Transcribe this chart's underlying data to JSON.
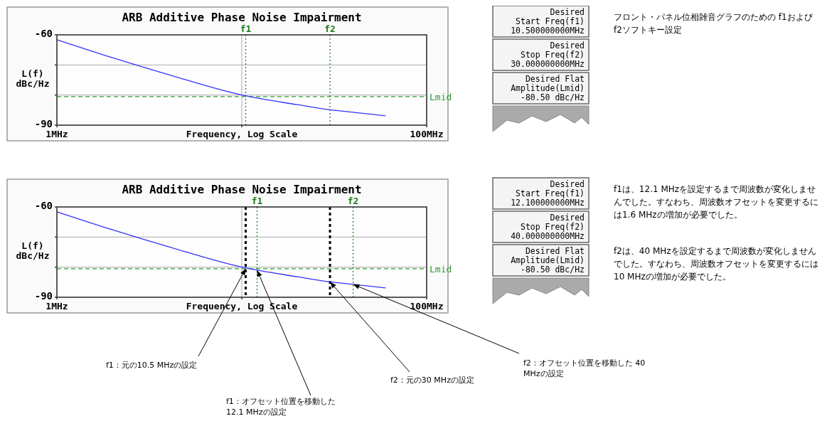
{
  "chart_data": [
    {
      "type": "line",
      "title": "ARB Additive Phase Noise Impairment",
      "xlabel": "Frequency, Log Scale",
      "ylabel": "L(f) dBc/Hz",
      "log": "x",
      "grid": true,
      "x": [
        1,
        2,
        4,
        10,
        20,
        30,
        40,
        60
      ],
      "series": [
        {
          "color": "#3333ff",
          "values": [
            -61.6,
            -67.6,
            -73.2,
            -80.0,
            -83.2,
            -84.9,
            -85.7,
            -86.9
          ]
        }
      ],
      "xlim": [
        1,
        100
      ],
      "xticks": [
        {
          "value": 1,
          "label": "1MHz"
        },
        {
          "value": 10,
          "label": null
        },
        {
          "value": 100,
          "label": "100MHz"
        }
      ],
      "ylim": [
        -90,
        -60
      ],
      "yticks": [
        {
          "value": -90,
          "label": "-90"
        },
        {
          "value": -80,
          "label": null
        },
        {
          "value": -70,
          "label": null
        },
        {
          "value": -60,
          "label": "-60"
        }
      ],
      "ref_lines": [
        {
          "axis": "x",
          "value": 10.5,
          "label": "f1",
          "color": "#1a7a1a",
          "line_style": "dotted"
        },
        {
          "axis": "x",
          "value": 30,
          "label": "f2",
          "color": "#1a7a1a",
          "line_style": "dotted"
        },
        {
          "axis": "y",
          "value": -80.5,
          "label": "Lmid",
          "color": "#2e9a2e",
          "line_style": "dashed"
        }
      ],
      "annotations": [
        "Desired\nStart Freq(f1)\n10.500000000MHz",
        "Desired\nStop Freq(f2)\n30.000000000MHz",
        "Desired Flat\nAmplitude(Lmid)\n-80.50 dBc/Hz",
        "フロント・パネル位相雑音グラフのための f1およびf2ソフトキー設定"
      ]
    },
    {
      "type": "line",
      "title": "ARB Additive Phase Noise Impairment",
      "xlabel": "Frequency, Log Scale",
      "ylabel": "L(f) dBc/Hz",
      "log": "x",
      "grid": true,
      "x": [
        1,
        2,
        4,
        10,
        20,
        30,
        40,
        60
      ],
      "series": [
        {
          "color": "#3333ff",
          "values": [
            -61.6,
            -67.6,
            -73.2,
            -80.0,
            -83.2,
            -84.9,
            -85.7,
            -86.9
          ]
        }
      ],
      "xlim": [
        1,
        100
      ],
      "xticks": [
        {
          "value": 1,
          "label": "1MHz"
        },
        {
          "value": 10,
          "label": null
        },
        {
          "value": 100,
          "label": "100MHz"
        }
      ],
      "ylim": [
        -90,
        -60
      ],
      "yticks": [
        {
          "value": -90,
          "label": "-90"
        },
        {
          "value": -80,
          "label": null
        },
        {
          "value": -70,
          "label": null
        },
        {
          "value": -60,
          "label": "-60"
        }
      ],
      "ref_lines": [
        {
          "axis": "x",
          "value": 12.1,
          "label": "f1",
          "color": "#1a7a1a",
          "line_style": "dotted"
        },
        {
          "axis": "x",
          "value": 40,
          "label": "f2",
          "color": "#1a7a1a",
          "line_style": "dotted"
        },
        {
          "axis": "y",
          "value": -80.5,
          "label": "Lmid",
          "color": "#2e9a2e",
          "line_style": "dashed"
        },
        {
          "axis": "x",
          "value": 10.5,
          "color": "#000000",
          "line_style": "dashed"
        },
        {
          "axis": "x",
          "value": 30,
          "color": "#000000",
          "line_style": "dashed"
        }
      ],
      "annotations": [
        "Desired\nStart Freq(f1)\n12.100000000MHz",
        "Desired\nStop Freq(f2)\n40.000000000MHz",
        "Desired Flat\nAmplitude(Lmid)\n-80.50 dBc/Hz",
        "f1は、12.1 MHzを設定するまで周波数が変化しませんでした。すなわち、周波数オフセットを変更するには1.6 MHzの増加が必要でした。",
        "f2は、40 MHzを設定するまで周波数が変化しませんでした。すなわち、周波数オフセットを変更するには10 MHzの増加が必要でした。",
        {
          "text": "f1：元の10.5 MHzの設定",
          "x": 10.5,
          "y": -80.5
        },
        {
          "text": "f1：オフセット位置を移動した 12.1 MHzの設定",
          "x": 12.1,
          "y": -81
        },
        {
          "text": "f2：元の30 MHzの設定",
          "x": 30,
          "y": -84.9
        },
        {
          "text": "f2：オフセット位置を移動した 40 MHzの設定",
          "x": 40,
          "y": -85.7
        }
      ]
    }
  ]
}
